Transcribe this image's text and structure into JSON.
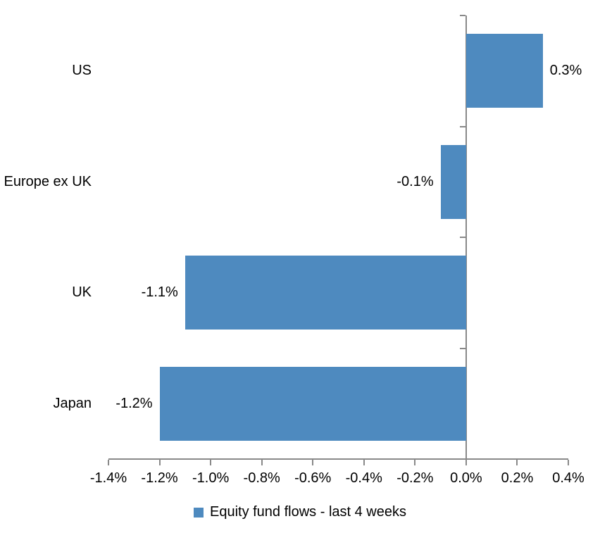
{
  "chart_data": {
    "type": "bar",
    "orientation": "horizontal",
    "title": "",
    "categories": [
      "US",
      "Europe ex UK",
      "UK",
      "Japan"
    ],
    "series": [
      {
        "name": "Equity fund flows - last 4 weeks",
        "values": [
          0.3,
          -0.1,
          -1.1,
          -1.2
        ],
        "data_labels": [
          "0.3%",
          "-0.1%",
          "-1.1%",
          "-1.2%"
        ],
        "color": "#4E8ABF"
      }
    ],
    "xlim": [
      -1.4,
      0.4
    ],
    "x_tick_values": [
      -1.4,
      -1.2,
      -1.0,
      -0.8,
      -0.6,
      -0.4,
      -0.2,
      0.0,
      0.2,
      0.4
    ],
    "x_tick_labels": [
      "-1.4%",
      "-1.2%",
      "-1.0%",
      "-0.8%",
      "-0.6%",
      "-0.4%",
      "-0.2%",
      "0.0%",
      "0.2%",
      "0.4%"
    ],
    "grid": false,
    "legend_position": "bottom",
    "colors": {
      "bar": "#4E8ABF",
      "axis": "#898989",
      "text": "#000000",
      "background": "#FFFFFF"
    }
  }
}
